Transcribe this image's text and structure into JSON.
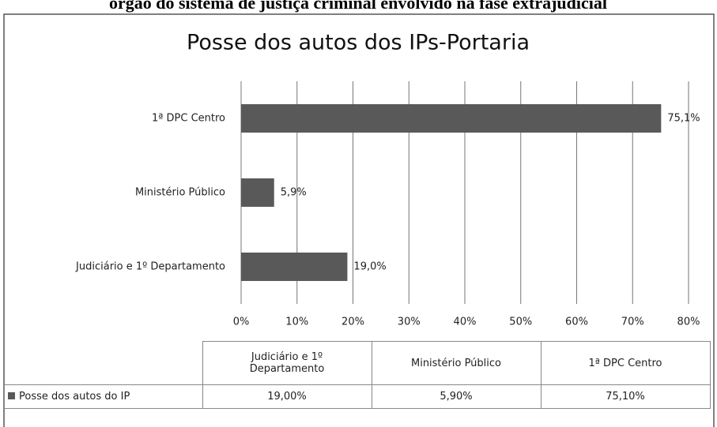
{
  "caption": "órgão do sistema de justiça criminal envolvido na fase extrajudicial",
  "chart_data": {
    "type": "bar",
    "orientation": "horizontal",
    "title": "Posse dos autos dos IPs-Portaria",
    "categories": [
      "Judiciário e 1º Departamento",
      "Ministério Público",
      "1ª DPC Centro"
    ],
    "series": [
      {
        "name": "Posse dos autos do IP",
        "color": "#595959",
        "values": [
          19.0,
          5.9,
          75.1
        ],
        "value_labels": [
          "19,0%",
          "5,9%",
          "75,1%"
        ],
        "table_labels": [
          "19,00%",
          "5,90%",
          "75,10%"
        ]
      }
    ],
    "xlim": [
      0,
      80
    ],
    "xticks": [
      {
        "value": 0,
        "label": "0%"
      },
      {
        "value": 10,
        "label": "10%"
      },
      {
        "value": 20,
        "label": "20%"
      },
      {
        "value": 30,
        "label": "30%"
      },
      {
        "value": 40,
        "label": "40%"
      },
      {
        "value": 50,
        "label": "50%"
      },
      {
        "value": 60,
        "label": "60%"
      },
      {
        "value": 70,
        "label": "70%"
      },
      {
        "value": 80,
        "label": "80%"
      }
    ],
    "grid": true
  }
}
